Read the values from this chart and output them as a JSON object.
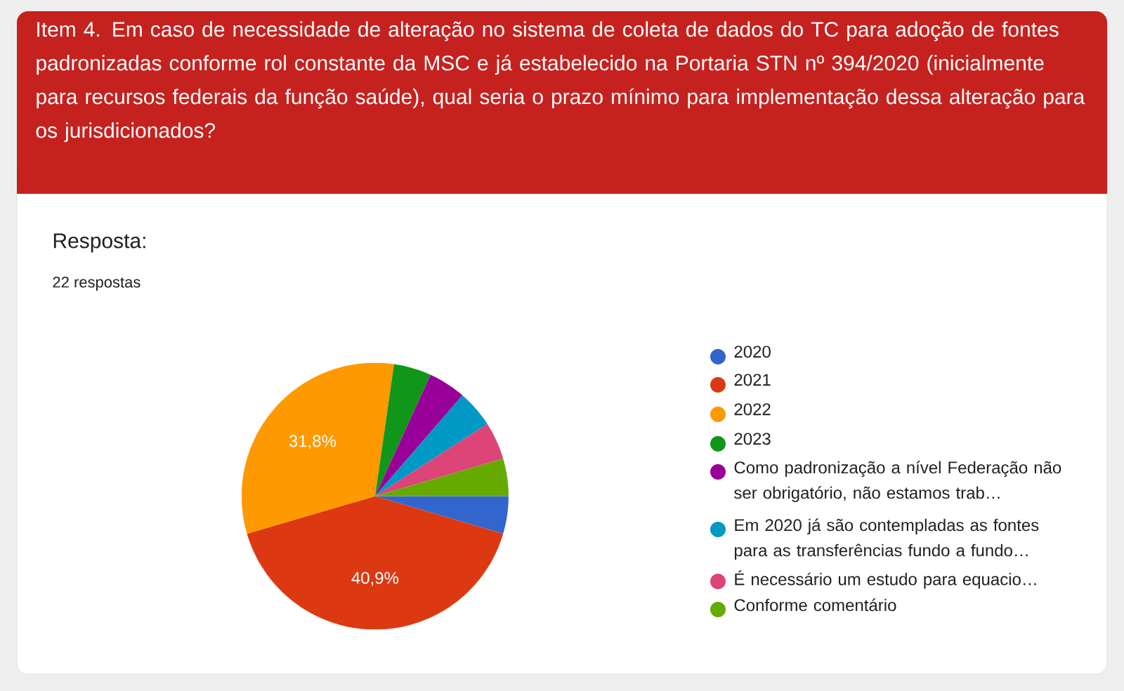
{
  "chart_data": {
    "type": "pie",
    "title": "Item 4. Em caso de necessidade de alteração no sistema de coleta de dados do TC para adoção de fontes padronizadas conforme rol constante da MSC e já estabelecido na Portaria STN nº 394/2020 (inicialmente para recursos federais da função saúde), qual seria o prazo mínimo para implementação dessa alteração para os jurisdicionados?",
    "subtitle": "Resposta:",
    "annotations": [
      "22 respostas"
    ],
    "categories": [
      "2020",
      "2021",
      "2022",
      "2023",
      "Como padronização a nível Federação não ser obrigatório, não estamos trab…",
      "Em 2020 já são contempladas as fontes para as transferências fundo a fundo…",
      "É necessário um estudo para equacio…",
      "Conforme comentário"
    ],
    "values": [
      4.545,
      40.91,
      31.82,
      4.545,
      4.545,
      4.545,
      4.545,
      4.545
    ],
    "value_labels": [
      null,
      "40,9%",
      "31,8%",
      null,
      null,
      null,
      null,
      null
    ],
    "colors": [
      "#3366cc",
      "#dc3912",
      "#ff9900",
      "#109618",
      "#990099",
      "#0099c6",
      "#dd4477",
      "#66aa00"
    ],
    "legend": "right"
  }
}
